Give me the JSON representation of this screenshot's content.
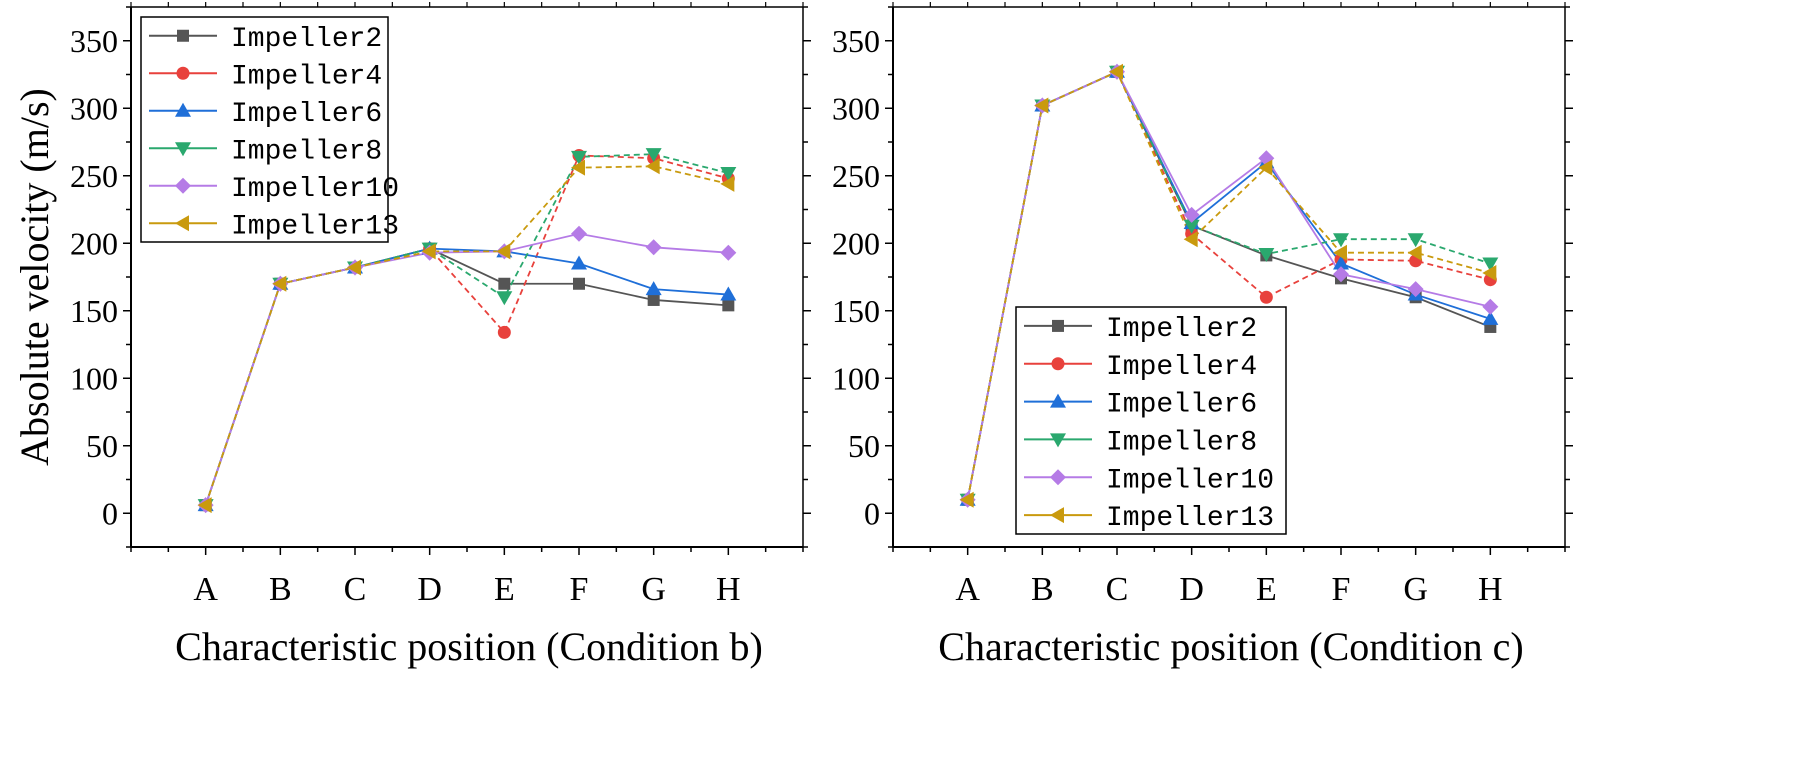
{
  "chart_data": [
    {
      "type": "line",
      "xlabel": "Characteristic position (Condition b)",
      "ylabel": "Absolute velocity (m/s)",
      "categories": [
        "A",
        "B",
        "C",
        "D",
        "E",
        "F",
        "G",
        "H"
      ],
      "ylim": [
        -25,
        375
      ],
      "yticks": [
        0,
        50,
        100,
        150,
        200,
        250,
        300,
        350
      ],
      "legend_position": "top-left",
      "grid": false,
      "series": [
        {
          "name": "Impeller2",
          "color": "#555555",
          "marker": "square",
          "dash": false,
          "values": [
            6,
            170,
            182,
            196,
            170,
            170,
            158,
            154
          ]
        },
        {
          "name": "Impeller4",
          "color": "#e8413c",
          "marker": "circle",
          "dash": true,
          "values": [
            6,
            170,
            182,
            196,
            134,
            265,
            263,
            248
          ]
        },
        {
          "name": "Impeller6",
          "color": "#1f6fd8",
          "marker": "triangle-up",
          "dash": false,
          "values": [
            6,
            170,
            182,
            196,
            194,
            185,
            166,
            162
          ]
        },
        {
          "name": "Impeller8",
          "color": "#2aa86e",
          "marker": "triangle-down",
          "dash": true,
          "values": [
            6,
            170,
            182,
            196,
            160,
            264,
            266,
            252
          ]
        },
        {
          "name": "Impeller10",
          "color": "#b57be6",
          "marker": "diamond",
          "dash": false,
          "values": [
            6,
            170,
            182,
            193,
            194,
            207,
            197,
            193
          ]
        },
        {
          "name": "Impeller13",
          "color": "#c99a0e",
          "marker": "triangle-left",
          "dash": true,
          "values": [
            6,
            170,
            182,
            194,
            194,
            256,
            257,
            244
          ]
        }
      ]
    },
    {
      "type": "line",
      "xlabel": "Characteristic position (Condition c)",
      "ylabel": "",
      "categories": [
        "A",
        "B",
        "C",
        "D",
        "E",
        "F",
        "G",
        "H"
      ],
      "ylim": [
        -25,
        375
      ],
      "yticks": [
        0,
        50,
        100,
        150,
        200,
        250,
        300,
        350
      ],
      "legend_position": "bottom-center",
      "grid": false,
      "series": [
        {
          "name": "Impeller2",
          "color": "#555555",
          "marker": "square",
          "dash": false,
          "values": [
            10,
            302,
            327,
            213,
            191,
            174,
            160,
            138
          ]
        },
        {
          "name": "Impeller4",
          "color": "#e8413c",
          "marker": "circle",
          "dash": true,
          "values": [
            10,
            302,
            327,
            207,
            160,
            188,
            187,
            173
          ]
        },
        {
          "name": "Impeller6",
          "color": "#1f6fd8",
          "marker": "triangle-up",
          "dash": false,
          "values": [
            10,
            302,
            327,
            215,
            260,
            185,
            162,
            144
          ]
        },
        {
          "name": "Impeller8",
          "color": "#2aa86e",
          "marker": "triangle-down",
          "dash": true,
          "values": [
            10,
            302,
            327,
            213,
            192,
            203,
            203,
            185
          ]
        },
        {
          "name": "Impeller10",
          "color": "#b57be6",
          "marker": "diamond",
          "dash": false,
          "values": [
            10,
            302,
            327,
            221,
            263,
            177,
            166,
            153
          ]
        },
        {
          "name": "Impeller13",
          "color": "#c99a0e",
          "marker": "triangle-left",
          "dash": true,
          "values": [
            10,
            302,
            327,
            203,
            256,
            193,
            193,
            178
          ]
        }
      ]
    }
  ]
}
